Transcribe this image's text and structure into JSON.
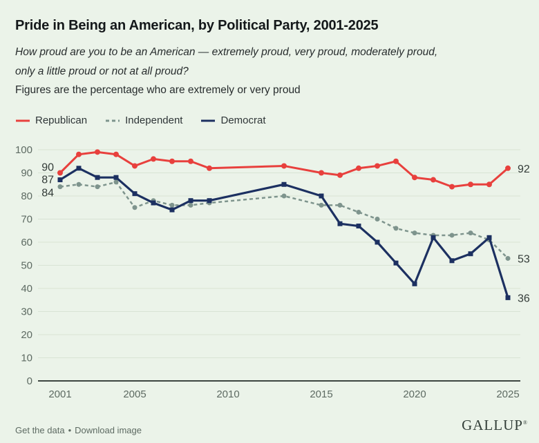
{
  "header": {
    "title": "Pride in Being an American, by Political Party, 2001-2025",
    "question_line1": "How proud are you to be an American — extremely proud, very proud, moderately proud,",
    "question_line2": "only a little proud or not at all proud?",
    "note": "Figures are the percentage who are extremely or very proud"
  },
  "legend": {
    "items": [
      {
        "label": "Republican",
        "color": "#e8403d",
        "dash": false
      },
      {
        "label": "Independent",
        "color": "#7e948d",
        "dash": true
      },
      {
        "label": "Democrat",
        "color": "#1c3061",
        "dash": false
      }
    ]
  },
  "chart_data": {
    "type": "line",
    "title": "Pride in Being an American, by Political Party, 2001-2025",
    "xlabel": "",
    "ylabel": "",
    "x": [
      2001,
      2002,
      2003,
      2004,
      2005,
      2006,
      2007,
      2008,
      2009,
      2013,
      2015,
      2016,
      2017,
      2018,
      2019,
      2020,
      2021,
      2022,
      2023,
      2024,
      2025
    ],
    "series": [
      {
        "name": "Republican",
        "color": "#e8403d",
        "dash": false,
        "marker": "circle",
        "values": [
          90,
          98,
          99,
          98,
          93,
          96,
          95,
          95,
          92,
          93,
          90,
          89,
          92,
          93,
          95,
          88,
          87,
          84,
          85,
          85,
          92
        ],
        "start_label": "90",
        "end_label": "92"
      },
      {
        "name": "Independent",
        "color": "#7e948d",
        "dash": true,
        "marker": "circle",
        "values": [
          84,
          85,
          84,
          86,
          75,
          78,
          76,
          76,
          77,
          80,
          76,
          76,
          73,
          70,
          66,
          64,
          63,
          63,
          64,
          61,
          53
        ],
        "start_label": "84",
        "end_label": "53"
      },
      {
        "name": "Democrat",
        "color": "#1c3061",
        "dash": false,
        "marker": "square",
        "values": [
          87,
          92,
          88,
          88,
          81,
          77,
          74,
          78,
          78,
          85,
          80,
          68,
          67,
          60,
          51,
          42,
          62,
          52,
          55,
          62,
          36
        ],
        "start_label": "87",
        "end_label": "36"
      }
    ],
    "xticks": [
      2001,
      2005,
      2010,
      2015,
      2020,
      2025
    ],
    "ylim": [
      0,
      100
    ],
    "ytick_step": 10,
    "grid": true,
    "legend_position": "top-left",
    "colors": {
      "background": "#ebf3e9",
      "gridline": "#d8e3d4",
      "axis_line": "#3c4540",
      "axis_text": "#5d6a62",
      "point_label": "#333b38"
    }
  },
  "footer": {
    "links": [
      "Get the data",
      "Download image"
    ],
    "separator": "•",
    "brand": "GALLUP",
    "brand_mark": "®"
  }
}
